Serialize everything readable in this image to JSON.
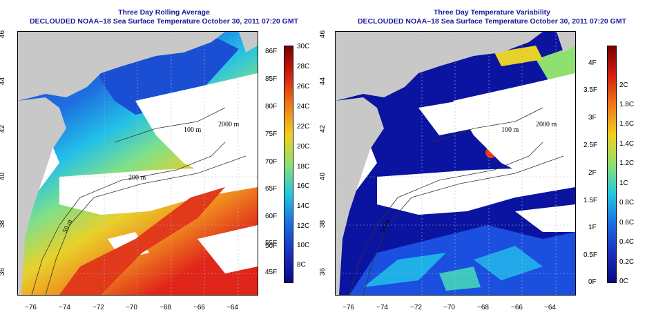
{
  "panels": [
    {
      "title": "Three Day Rolling Average",
      "subtitle": "DECLOUDED NOAA–18 Sea Surface Temperature October 30, 2011 07:20 GMT",
      "colorbar_left": [
        "86F",
        "85F",
        "80F",
        "75F",
        "70F",
        "65F",
        "60F",
        "55F",
        "50F",
        "45F"
      ],
      "colorbar_right": [
        "30C",
        "28C",
        "26C",
        "24C",
        "22C",
        "20C",
        "18C",
        "16C",
        "14C",
        "12C",
        "10C",
        "8C"
      ]
    },
    {
      "title": "Three Day Temperature Variability",
      "subtitle": "DECLOUDED NOAA–18 Sea Surface Temperature October 30, 2011 07:20 GMT",
      "colorbar_left": [
        "4F",
        "3.5F",
        "3F",
        "2.5F",
        "2F",
        "1.5F",
        "1F",
        "0.5F",
        "0F"
      ],
      "colorbar_right": [
        "2C",
        "1.8C",
        "1.6C",
        "1.4C",
        "1.2C",
        "1C",
        "0.8C",
        "0.6C",
        "0.4C",
        "0.2C",
        "0C"
      ]
    }
  ],
  "lon_ticks": [
    "−76",
    "−74",
    "−72",
    "−70",
    "−68",
    "−66",
    "−64"
  ],
  "lat_ticks": [
    "46",
    "44",
    "42",
    "40",
    "38",
    "36"
  ],
  "contour_labels": [
    "100 m",
    "2000 m",
    "200 m",
    "50 m"
  ],
  "colors": {
    "title": "#1a1a9e",
    "land": "#c8c8c8",
    "cloud": "#ffffff"
  }
}
